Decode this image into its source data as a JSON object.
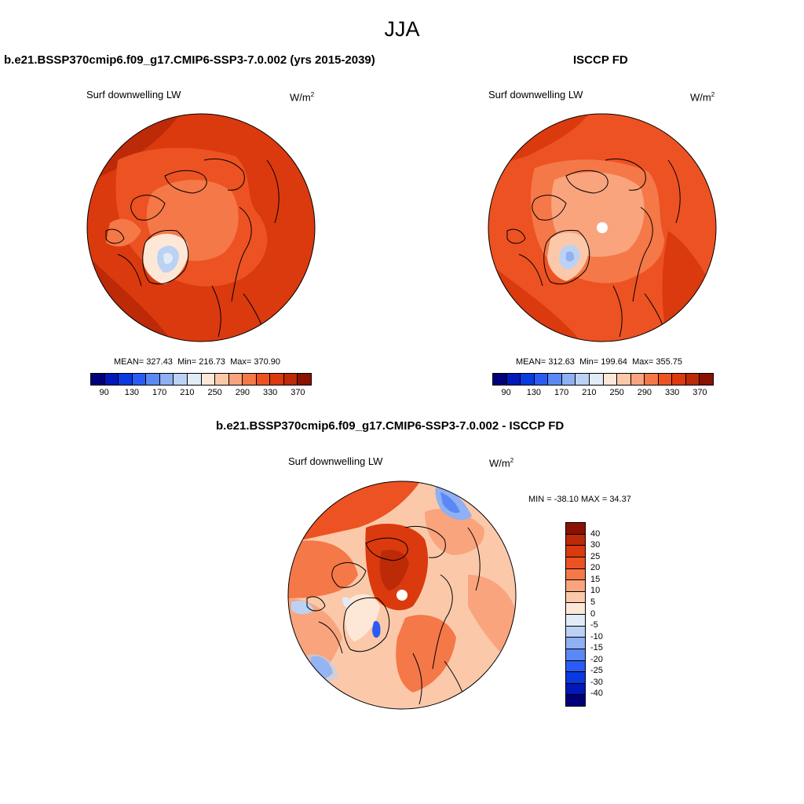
{
  "page": {
    "title": "JJA"
  },
  "chart_data": [
    {
      "type": "heatmap",
      "projection": "north-polar-stereographic",
      "title": "b.e21.BSSP370cmip6.f09_g17.CMIP6-SSP3-7.0.002 (yrs 2015-2039)",
      "variable_label": "Surf downwelling LW",
      "units": "W/m",
      "units_exp": "2",
      "stats": {
        "mean_label": "MEAN=",
        "mean": "327.43",
        "min_label": "Min=",
        "min": "216.73",
        "max_label": "Max=",
        "max": "370.90"
      },
      "colorbar": {
        "orientation": "horizontal",
        "levels": [
          70,
          90,
          110,
          130,
          150,
          170,
          190,
          210,
          230,
          250,
          270,
          290,
          310,
          330,
          350,
          370
        ],
        "tick_labels": [
          "90",
          "130",
          "170",
          "210",
          "250",
          "290",
          "330",
          "370"
        ]
      }
    },
    {
      "type": "heatmap",
      "projection": "north-polar-stereographic",
      "title": "ISCCP FD",
      "variable_label": "Surf downwelling LW",
      "units": "W/m",
      "units_exp": "2",
      "stats": {
        "mean_label": "MEAN=",
        "mean": "312.63",
        "min_label": "Min=",
        "min": "199.64",
        "max_label": "Max=",
        "max": "355.75"
      },
      "colorbar": {
        "orientation": "horizontal",
        "levels": [
          70,
          90,
          110,
          130,
          150,
          170,
          190,
          210,
          230,
          250,
          270,
          290,
          310,
          330,
          350,
          370
        ],
        "tick_labels": [
          "90",
          "130",
          "170",
          "210",
          "250",
          "290",
          "330",
          "370"
        ]
      }
    },
    {
      "type": "heatmap",
      "projection": "north-polar-stereographic",
      "title": "b.e21.BSSP370cmip6.f09_g17.CMIP6-SSP3-7.0.002 - ISCCP FD",
      "variable_label": "Surf downwelling LW",
      "units": "W/m",
      "units_exp": "2",
      "stats": {
        "text": "MIN = -38.10 MAX =  34.37",
        "min": -38.1,
        "max": 34.37
      },
      "colorbar": {
        "orientation": "vertical",
        "levels": [
          -40,
          -30,
          -25,
          -20,
          -15,
          -10,
          -5,
          0,
          5,
          10,
          15,
          20,
          25,
          30,
          40
        ],
        "tick_labels": [
          "40",
          "30",
          "25",
          "20",
          "15",
          "10",
          "5",
          "0",
          "-5",
          "-10",
          "-15",
          "-20",
          "-25",
          "-30",
          "-40"
        ]
      }
    }
  ],
  "colors": {
    "abs_scale": [
      "#00007a",
      "#0019b8",
      "#0a39e0",
      "#2a5cf5",
      "#5a88f5",
      "#8fb0f2",
      "#bcd2f2",
      "#e2ecf7",
      "#fde8d8",
      "#fbc9aa",
      "#f9a47d",
      "#f57848",
      "#ed5223",
      "#da3a0e",
      "#bc2a08",
      "#8a1200"
    ],
    "diff_scale": [
      "#8a1200",
      "#bc2a08",
      "#da3a0e",
      "#ed5223",
      "#f57848",
      "#f9a47d",
      "#fbc9aa",
      "#fde8d8",
      "#e2ecf7",
      "#bcd2f2",
      "#8fb0f2",
      "#5a88f5",
      "#2a5cf5",
      "#0a39e0",
      "#0019b8",
      "#00007a"
    ]
  }
}
